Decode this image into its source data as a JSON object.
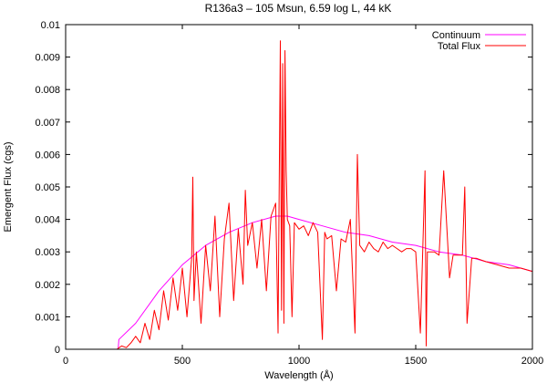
{
  "chart_data": {
    "type": "line",
    "title": "R136a3 – 105 Msun, 6.59 log L, 44 kK",
    "xlabel": "Wavelength (Å)",
    "ylabel": "Emergent Flux (cgs)",
    "xlim": [
      0,
      2000
    ],
    "ylim": [
      0,
      0.01
    ],
    "x_ticks": [
      "0",
      "500",
      "1000",
      "1500",
      "2000"
    ],
    "y_ticks": [
      "0",
      "0.001",
      "0.002",
      "0.003",
      "0.004",
      "0.005",
      "0.006",
      "0.007",
      "0.008",
      "0.009",
      "0.01"
    ],
    "grid": false,
    "legend_position": "top-right",
    "series": [
      {
        "name": "Continuum",
        "color": "#ff00ff",
        "x": [
          0,
          225,
          228,
          300,
          400,
          500,
          600,
          700,
          800,
          900,
          950,
          1000,
          1100,
          1200,
          1300,
          1400,
          1500,
          1600,
          1700,
          1800,
          1900,
          2000
        ],
        "y": [
          0,
          0,
          0.0003,
          0.0008,
          0.0018,
          0.0026,
          0.0032,
          0.0036,
          0.0039,
          0.0041,
          0.0041,
          0.004,
          0.0038,
          0.0036,
          0.0035,
          0.0033,
          0.0032,
          0.003,
          0.0029,
          0.0027,
          0.0026,
          0.0024
        ]
      },
      {
        "name": "Total Flux",
        "color": "#ff0000",
        "x": [
          0,
          220,
          240,
          260,
          280,
          300,
          320,
          340,
          360,
          380,
          400,
          420,
          440,
          460,
          480,
          500,
          520,
          540,
          545,
          550,
          560,
          580,
          600,
          620,
          640,
          660,
          680,
          700,
          720,
          740,
          760,
          770,
          780,
          800,
          820,
          840,
          860,
          880,
          900,
          910,
          920,
          925,
          930,
          935,
          940,
          945,
          950,
          960,
          970,
          980,
          1000,
          1020,
          1040,
          1060,
          1080,
          1100,
          1110,
          1120,
          1140,
          1160,
          1180,
          1200,
          1220,
          1240,
          1250,
          1260,
          1280,
          1300,
          1320,
          1340,
          1360,
          1380,
          1400,
          1420,
          1440,
          1460,
          1480,
          1500,
          1520,
          1540,
          1545,
          1550,
          1560,
          1580,
          1600,
          1620,
          1640,
          1645,
          1660,
          1680,
          1700,
          1710,
          1720,
          1740,
          1760,
          1800,
          1850,
          1900,
          1950,
          2000
        ],
        "y": [
          0,
          0,
          0.0001,
          5e-05,
          0.0002,
          0.0004,
          0.0002,
          0.0008,
          0.0003,
          0.0012,
          0.0006,
          0.0018,
          0.0009,
          0.0022,
          0.0012,
          0.0025,
          0.001,
          0.0028,
          0.0053,
          0.0015,
          0.003,
          0.0008,
          0.0032,
          0.0018,
          0.0041,
          0.001,
          0.0034,
          0.0045,
          0.0015,
          0.0037,
          0.002,
          0.0049,
          0.0032,
          0.0039,
          0.0025,
          0.004,
          0.0018,
          0.0041,
          0.0045,
          0.0005,
          0.0095,
          0.0012,
          0.0088,
          0.0008,
          0.0092,
          0.0055,
          0.004,
          0.0038,
          0.001,
          0.0039,
          0.0037,
          0.0038,
          0.0035,
          0.0039,
          0.0036,
          0.0003,
          0.0036,
          0.0034,
          0.0035,
          0.0018,
          0.0034,
          0.0033,
          0.004,
          0.0005,
          0.006,
          0.0032,
          0.003,
          0.0033,
          0.0031,
          0.003,
          0.0033,
          0.0031,
          0.0032,
          0.0031,
          0.003,
          0.0031,
          0.0031,
          0.003,
          0.0005,
          0.0055,
          0.0001,
          0.003,
          0.003,
          0.003,
          0.0029,
          0.0055,
          0.0029,
          0.0022,
          0.0029,
          0.0029,
          0.0029,
          0.005,
          0.0008,
          0.0028,
          0.0028,
          0.0027,
          0.0026,
          0.0025,
          0.0025,
          0.0024
        ]
      }
    ]
  }
}
